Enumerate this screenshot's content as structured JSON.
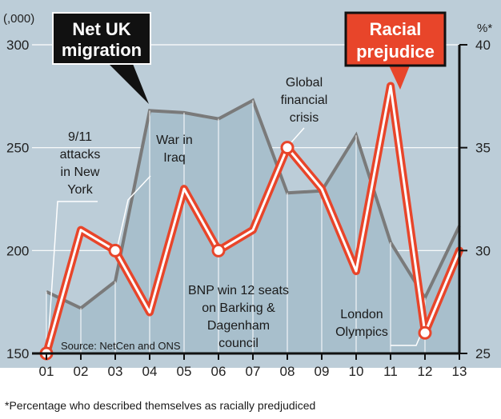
{
  "chart_data": {
    "type": "line",
    "categories": [
      "01",
      "02",
      "03",
      "04",
      "05",
      "06",
      "07",
      "08",
      "09",
      "10",
      "11",
      "12",
      "13"
    ],
    "series": [
      {
        "name": "Net UK migration",
        "axis": "left",
        "style": "area",
        "values": [
          180,
          172,
          185,
          268,
          267,
          264,
          273,
          228,
          229,
          256,
          204,
          177,
          212
        ]
      },
      {
        "name": "Racial prejudice",
        "axis": "right",
        "style": "line",
        "values": [
          25,
          31,
          30,
          27,
          33,
          30,
          31,
          35,
          33,
          29,
          38,
          26,
          30
        ]
      }
    ],
    "left_axis": {
      "unit": "(,000)",
      "ticks": [
        "150",
        "200",
        "250",
        "300"
      ],
      "range": [
        150,
        300
      ]
    },
    "right_axis": {
      "unit": "%*",
      "ticks": [
        "25",
        "30",
        "35",
        "40"
      ],
      "range": [
        25,
        40
      ]
    },
    "labels": {
      "migration": [
        "Net UK",
        "migration"
      ],
      "prejudice": [
        "Racial",
        "prejudice"
      ]
    },
    "annotations": [
      {
        "id": "911",
        "lines": [
          "9/11",
          "attacks",
          "in New",
          "York"
        ]
      },
      {
        "id": "iraq",
        "lines": [
          "War in",
          "Iraq"
        ]
      },
      {
        "id": "crisis",
        "lines": [
          "Global",
          "financial",
          "crisis"
        ]
      },
      {
        "id": "bnp",
        "lines": [
          "BNP win 12 seats",
          "on Barking &",
          "Dagenham",
          "council"
        ]
      },
      {
        "id": "olympics",
        "lines": [
          "London",
          "Olympics"
        ]
      }
    ],
    "source": "Source: NetCen and ONS",
    "footnote": "*Percentage who described themselves as racially predjudiced"
  },
  "colors": {
    "area_fill": "#a8bfcc",
    "area_line": "#7a7a7a",
    "background_band": "#bccdd8",
    "prejudice_line": "#e8452a",
    "prejudice_core": "#ffffff",
    "migration_box": "#111111",
    "prejudice_box": "#e8452a"
  }
}
